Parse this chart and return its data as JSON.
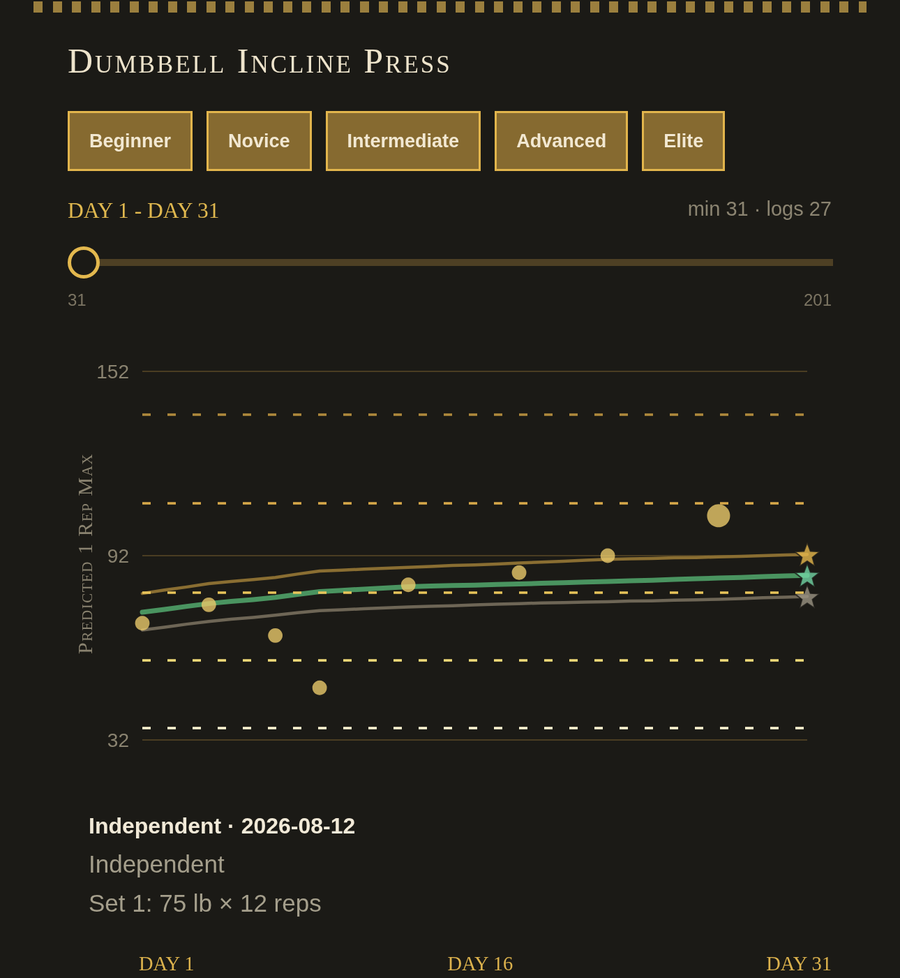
{
  "chart_data": {
    "type": "line",
    "title": "Dumbbell Incline Press",
    "subtitle": "DAY 1 - DAY 31",
    "ylabel": "Predicted 1 Rep Max",
    "annotations": [
      "Beginner",
      "Novice",
      "Intermediate",
      "Advanced",
      "Elite",
      "min 31 · logs 27",
      "31",
      "201",
      "Independent · 2026-08-12",
      "Independent",
      "Set 1: 75 lb × 12 reps",
      "DAY 1",
      "DAY 16",
      "DAY 31"
    ],
    "categories": [
      null,
      null,
      null,
      null,
      null,
      null,
      null,
      null,
      null,
      null,
      null,
      null,
      null,
      null,
      null,
      null,
      null,
      null,
      null,
      null,
      null,
      null,
      null,
      null,
      null,
      null,
      null,
      null,
      null,
      null,
      null
    ],
    "ylim": [
      32,
      152
    ],
    "yticks": [
      32,
      92,
      152
    ],
    "grid": "y",
    "ref_lines": [
      {
        "axis": "y",
        "value": 138,
        "color": "#b08a3c",
        "line_style": "dashed"
      },
      {
        "axis": "y",
        "value": 109,
        "color": "#d8a94a",
        "line_style": "dashed"
      },
      {
        "axis": "y",
        "value": 80,
        "color": "#e8c45a",
        "line_style": "dashed"
      },
      {
        "axis": "y",
        "value": 58,
        "color": "#f3dc7a",
        "line_style": "dashed"
      },
      {
        "axis": "y",
        "value": 36,
        "color": "#fff6d2",
        "line_style": "dashed"
      }
    ],
    "series": [
      {
        "color": "#8a6e32",
        "marker": "none",
        "values": [
          79.7,
          80.8,
          81.8,
          82.9,
          83.6,
          84.2,
          84.9,
          86.0,
          87.0,
          87.3,
          87.6,
          87.9,
          88.2,
          88.5,
          88.8,
          89.0,
          89.3,
          89.6,
          89.9,
          90.2,
          90.5,
          90.8,
          91.0,
          91.1,
          91.3,
          91.4,
          91.6,
          91.8,
          92.0,
          92.2,
          92.4
        ]
      },
      {
        "color": "#4a9460",
        "marker": "none",
        "values": [
          73.6,
          74.5,
          75.5,
          76.4,
          77.1,
          77.7,
          78.4,
          79.4,
          80.3,
          80.7,
          81.1,
          81.5,
          81.9,
          82.1,
          82.3,
          82.4,
          82.6,
          82.8,
          83.0,
          83.2,
          83.4,
          83.6,
          83.8,
          84.0,
          84.3,
          84.5,
          84.7,
          84.9,
          85.2,
          85.4,
          85.6
        ]
      },
      {
        "color": "#6e6656",
        "marker": "none",
        "values": [
          67.8,
          68.7,
          69.7,
          70.6,
          71.3,
          71.9,
          72.6,
          73.4,
          74.1,
          74.4,
          74.7,
          75.0,
          75.3,
          75.5,
          75.7,
          76.0,
          76.2,
          76.4,
          76.6,
          76.7,
          76.9,
          77.0,
          77.2,
          77.3,
          77.5,
          77.6,
          77.8,
          78.0,
          78.3,
          78.5,
          78.7
        ]
      },
      {
        "type": "bubble",
        "color": "#e8c86a",
        "marker": "circle",
        "values": [
          70,
          null,
          null,
          76,
          null,
          null,
          66,
          null,
          49,
          null,
          null,
          null,
          82.5,
          null,
          null,
          null,
          null,
          86.5,
          null,
          null,
          null,
          92,
          null,
          null,
          null,
          null,
          105,
          null,
          null,
          null,
          null
        ],
        "sizes": [
          0.4,
          null,
          null,
          0.4,
          null,
          null,
          0.4,
          null,
          0.4,
          null,
          null,
          null,
          0.4,
          null,
          null,
          null,
          null,
          0.4,
          null,
          null,
          null,
          0.4,
          null,
          null,
          null,
          null,
          1,
          null,
          null,
          null,
          null
        ]
      },
      {
        "type": "scatter",
        "color": "#e6b84c",
        "marker": "star",
        "values": [
          null,
          null,
          null,
          null,
          null,
          null,
          null,
          null,
          null,
          null,
          null,
          null,
          null,
          null,
          null,
          null,
          null,
          null,
          null,
          null,
          null,
          null,
          null,
          null,
          null,
          null,
          null,
          null,
          null,
          null,
          92.4
        ]
      },
      {
        "type": "scatter",
        "color": "#72d4a4",
        "marker": "star",
        "values": [
          null,
          null,
          null,
          null,
          null,
          null,
          null,
          null,
          null,
          null,
          null,
          null,
          null,
          null,
          null,
          null,
          null,
          null,
          null,
          null,
          null,
          null,
          null,
          null,
          null,
          null,
          null,
          null,
          null,
          null,
          85.6
        ]
      },
      {
        "type": "scatter",
        "color": "#9b9483",
        "marker": "star",
        "values": [
          null,
          null,
          null,
          null,
          null,
          null,
          null,
          null,
          null,
          null,
          null,
          null,
          null,
          null,
          null,
          null,
          null,
          null,
          null,
          null,
          null,
          null,
          null,
          null,
          null,
          null,
          null,
          null,
          null,
          null,
          78.7
        ]
      }
    ]
  }
}
